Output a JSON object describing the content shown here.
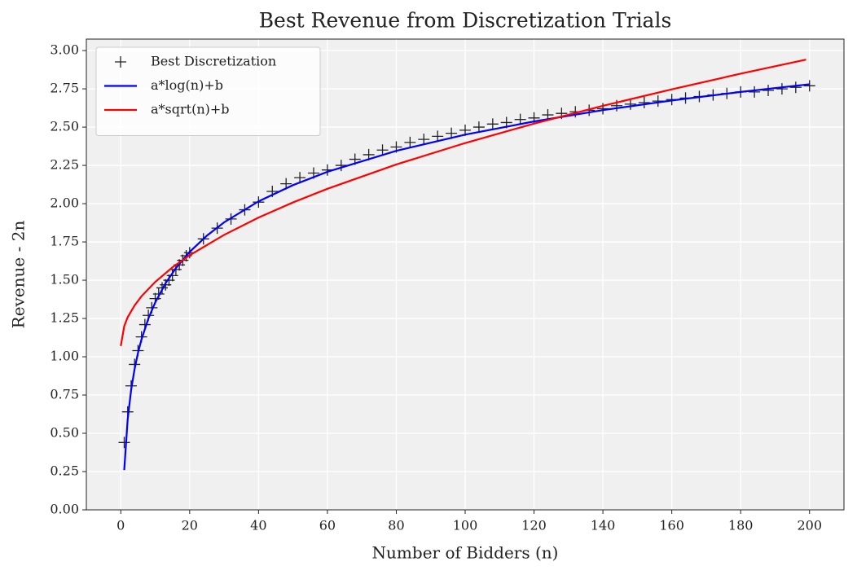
{
  "chart_data": {
    "type": "line",
    "title": "Best Revenue from Discretization Trials",
    "xlabel": "Number of Bidders (n)",
    "ylabel": "Revenue - 2n",
    "xlim": [
      -10,
      210
    ],
    "ylim": [
      0,
      3.075
    ],
    "xticks": [
      0,
      20,
      40,
      60,
      80,
      100,
      120,
      140,
      160,
      180,
      200
    ],
    "yticks": [
      {
        "value": 0,
        "label": "0.00"
      },
      {
        "value": 0.25,
        "label": "0.25"
      },
      {
        "value": 0.5,
        "label": "0.50"
      },
      {
        "value": 0.75,
        "label": "0.75"
      },
      {
        "value": 1,
        "label": "1.00"
      },
      {
        "value": 1.25,
        "label": "1.25"
      },
      {
        "value": 1.5,
        "label": "1.50"
      },
      {
        "value": 1.75,
        "label": "1.75"
      },
      {
        "value": 2,
        "label": "2.00"
      },
      {
        "value": 2.25,
        "label": "2.25"
      },
      {
        "value": 2.5,
        "label": "2.50"
      },
      {
        "value": 2.75,
        "label": "2.75"
      },
      {
        "value": 3,
        "label": "3.00"
      }
    ],
    "grid": true,
    "legend": "upper-left",
    "series": [
      {
        "name": "Best Discretization",
        "type": "scatter",
        "color": "#222222",
        "x": [
          1,
          2,
          3,
          4,
          5,
          6,
          7,
          8,
          9,
          10,
          11,
          12,
          13,
          14,
          15,
          16,
          17,
          18,
          19,
          20,
          24,
          28,
          32,
          36,
          40,
          44,
          48,
          52,
          56,
          60,
          64,
          68,
          72,
          76,
          80,
          84,
          88,
          92,
          96,
          100,
          104,
          108,
          112,
          116,
          120,
          124,
          128,
          132,
          136,
          140,
          144,
          148,
          152,
          156,
          160,
          164,
          168,
          172,
          176,
          180,
          184,
          188,
          192,
          196,
          200
        ],
        "values": [
          0.44,
          0.64,
          0.81,
          0.95,
          1.04,
          1.13,
          1.21,
          1.27,
          1.32,
          1.38,
          1.41,
          1.45,
          1.47,
          1.5,
          1.53,
          1.57,
          1.6,
          1.63,
          1.66,
          1.68,
          1.77,
          1.84,
          1.9,
          1.96,
          2.01,
          2.08,
          2.13,
          2.17,
          2.2,
          2.22,
          2.25,
          2.29,
          2.32,
          2.35,
          2.37,
          2.4,
          2.42,
          2.44,
          2.46,
          2.48,
          2.5,
          2.52,
          2.53,
          2.55,
          2.56,
          2.58,
          2.59,
          2.6,
          2.61,
          2.62,
          2.64,
          2.65,
          2.66,
          2.67,
          2.68,
          2.69,
          2.7,
          2.71,
          2.72,
          2.73,
          2.73,
          2.74,
          2.75,
          2.76,
          2.77
        ]
      },
      {
        "name": "a*log(n)+b",
        "type": "line",
        "color": "#0000ff",
        "x": [
          1,
          2,
          3,
          4,
          5,
          6,
          8,
          10,
          13,
          16,
          20,
          25,
          30,
          40,
          50,
          60,
          80,
          100,
          120,
          140,
          160,
          180,
          200
        ],
        "values": [
          0.26,
          0.59,
          0.783,
          0.919,
          1.026,
          1.112,
          1.249,
          1.355,
          1.48,
          1.579,
          1.685,
          1.791,
          1.878,
          2.015,
          2.121,
          2.208,
          2.345,
          2.451,
          2.537,
          2.611,
          2.674,
          2.73,
          2.78
        ]
      },
      {
        "name": "a*sqrt(n)+b",
        "type": "line",
        "color": "#ff0000",
        "x": [
          0,
          1,
          2,
          4,
          6,
          10,
          15,
          20,
          30,
          40,
          50,
          60,
          80,
          100,
          120,
          140,
          160,
          180,
          199
        ],
        "values": [
          1.07,
          1.2,
          1.258,
          1.335,
          1.395,
          1.489,
          1.584,
          1.663,
          1.796,
          1.909,
          2.008,
          2.097,
          2.256,
          2.396,
          2.523,
          2.639,
          2.747,
          2.849,
          2.941
        ]
      }
    ]
  }
}
